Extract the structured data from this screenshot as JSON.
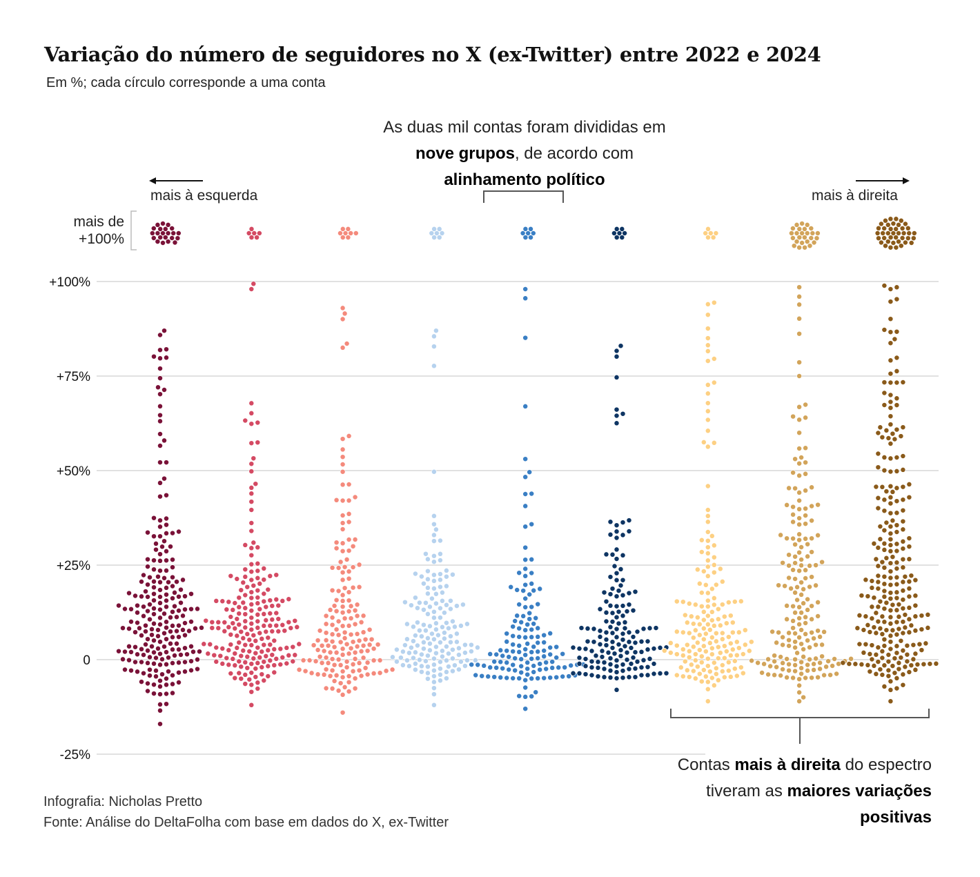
{
  "title": "Variação do número de seguidores no X (ex-Twitter) entre 2022 e 2024",
  "subtitle": "Em %; cada círculo corresponde a uma conta",
  "note_top": {
    "part1": "As duas mil contas foram divididas em ",
    "bold1": "nove grupos",
    "part2": ", de acordo com ",
    "bold2": "alinhamento político"
  },
  "direction": {
    "left": "mais à esquerda",
    "right": "mais à direita"
  },
  "overflow_label": {
    "line1": "mais de",
    "line2": "+100%"
  },
  "note_bottom": {
    "part1": "Contas ",
    "bold1": "mais à direita",
    "part2": " do espectro tiveram as ",
    "bold2": "maiores variações positivas"
  },
  "credits": {
    "infographic": "Infografia: Nicholas Pretto",
    "source": "Fonte: Análise do DeltaFolha com base em dados do X, ex-Twitter"
  },
  "chart_data": {
    "type": "beeswarm",
    "title": "Variação do número de seguidores no X (ex-Twitter) entre 2022 e 2024",
    "unit": "%",
    "ylim": [
      -25,
      100
    ],
    "yticks": [
      {
        "value": 100,
        "label": "+100%"
      },
      {
        "value": 75,
        "label": "+75%"
      },
      {
        "value": 50,
        "label": "+50%"
      },
      {
        "value": 25,
        "label": "+25%"
      },
      {
        "value": 0,
        "label": "0"
      },
      {
        "value": -25,
        "label": "-25%"
      }
    ],
    "grid": true,
    "groups": [
      {
        "index": 1,
        "position": "mais à esquerda",
        "color": "#7a1238",
        "accounts_over_100": 22,
        "min": -17,
        "max": 87,
        "bins": [
          [
            -15,
            3
          ],
          [
            -10,
            14
          ],
          [
            -5,
            26
          ],
          [
            0,
            34
          ],
          [
            5,
            32
          ],
          [
            10,
            28
          ],
          [
            15,
            22
          ],
          [
            20,
            16
          ],
          [
            25,
            10
          ],
          [
            30,
            8
          ],
          [
            35,
            5
          ],
          [
            40,
            2
          ],
          [
            45,
            2
          ],
          [
            50,
            2
          ],
          [
            55,
            3
          ],
          [
            60,
            2
          ],
          [
            65,
            1
          ],
          [
            70,
            4
          ],
          [
            75,
            3
          ],
          [
            80,
            3
          ],
          [
            85,
            1
          ]
        ]
      },
      {
        "index": 2,
        "position": "",
        "color": "#d44a63",
        "accounts_over_100": 6,
        "min": -12,
        "max": 98,
        "bins": [
          [
            -10,
            8
          ],
          [
            -5,
            28
          ],
          [
            0,
            40
          ],
          [
            5,
            36
          ],
          [
            10,
            28
          ],
          [
            15,
            20
          ],
          [
            20,
            14
          ],
          [
            25,
            5
          ],
          [
            30,
            3
          ],
          [
            35,
            2
          ],
          [
            40,
            2
          ],
          [
            45,
            3
          ],
          [
            50,
            2
          ],
          [
            55,
            2
          ],
          [
            60,
            3
          ],
          [
            65,
            2
          ],
          [
            95,
            1
          ]
        ]
      },
      {
        "index": 3,
        "position": "",
        "color": "#f48a7c",
        "accounts_over_100": 8,
        "min": -14,
        "max": 93,
        "bins": [
          [
            -10,
            10
          ],
          [
            -5,
            36
          ],
          [
            0,
            30
          ],
          [
            5,
            22
          ],
          [
            10,
            16
          ],
          [
            15,
            10
          ],
          [
            20,
            8
          ],
          [
            25,
            7
          ],
          [
            30,
            5
          ],
          [
            35,
            4
          ],
          [
            40,
            4
          ],
          [
            45,
            3
          ],
          [
            50,
            2
          ],
          [
            55,
            3
          ],
          [
            80,
            2
          ],
          [
            90,
            2
          ]
        ]
      },
      {
        "index": 4,
        "position": "",
        "color": "#b6d2ee",
        "accounts_over_100": 7,
        "min": -12,
        "max": 87,
        "bins": [
          [
            -10,
            5
          ],
          [
            -5,
            30
          ],
          [
            0,
            36
          ],
          [
            5,
            26
          ],
          [
            10,
            16
          ],
          [
            15,
            14
          ],
          [
            20,
            12
          ],
          [
            25,
            6
          ],
          [
            30,
            4
          ],
          [
            35,
            2
          ],
          [
            45,
            1
          ],
          [
            75,
            1
          ],
          [
            80,
            1
          ],
          [
            85,
            1
          ]
        ]
      },
      {
        "index": 5,
        "position": "",
        "color": "#3a7fc4",
        "accounts_over_100": 7,
        "min": -13,
        "max": 98,
        "bins": [
          [
            -10,
            6
          ],
          [
            -5,
            46
          ],
          [
            0,
            30
          ],
          [
            5,
            16
          ],
          [
            10,
            10
          ],
          [
            15,
            8
          ],
          [
            20,
            5
          ],
          [
            25,
            3
          ],
          [
            35,
            2
          ],
          [
            40,
            3
          ],
          [
            45,
            2
          ],
          [
            50,
            1
          ],
          [
            65,
            1
          ],
          [
            85,
            1
          ],
          [
            95,
            1
          ]
        ]
      },
      {
        "index": 6,
        "position": "",
        "color": "#0e3563",
        "accounts_over_100": 7,
        "min": -8,
        "max": 83,
        "bins": [
          [
            -5,
            40
          ],
          [
            0,
            36
          ],
          [
            5,
            22
          ],
          [
            10,
            14
          ],
          [
            15,
            10
          ],
          [
            20,
            6
          ],
          [
            25,
            5
          ],
          [
            30,
            5
          ],
          [
            35,
            4
          ],
          [
            60,
            2
          ],
          [
            65,
            2
          ],
          [
            70,
            1
          ],
          [
            80,
            2
          ]
        ]
      },
      {
        "index": 7,
        "position": "",
        "color": "#fdd083",
        "accounts_over_100": 6,
        "min": -11,
        "max": 94,
        "bins": [
          [
            -10,
            5
          ],
          [
            -5,
            32
          ],
          [
            0,
            38
          ],
          [
            5,
            26
          ],
          [
            10,
            18
          ],
          [
            15,
            12
          ],
          [
            20,
            8
          ],
          [
            25,
            6
          ],
          [
            30,
            5
          ],
          [
            35,
            3
          ],
          [
            45,
            1
          ],
          [
            55,
            3
          ],
          [
            60,
            2
          ],
          [
            65,
            2
          ],
          [
            70,
            3
          ],
          [
            75,
            2
          ],
          [
            80,
            2
          ],
          [
            85,
            2
          ],
          [
            90,
            2
          ]
        ]
      },
      {
        "index": 8,
        "position": "",
        "color": "#d2a45a",
        "accounts_over_100": 26,
        "min": -11,
        "max": 96,
        "bins": [
          [
            -10,
            4
          ],
          [
            -5,
            38
          ],
          [
            0,
            22
          ],
          [
            5,
            18
          ],
          [
            10,
            14
          ],
          [
            15,
            12
          ],
          [
            20,
            12
          ],
          [
            25,
            10
          ],
          [
            30,
            10
          ],
          [
            35,
            9
          ],
          [
            40,
            7
          ],
          [
            45,
            6
          ],
          [
            50,
            4
          ],
          [
            55,
            3
          ],
          [
            60,
            3
          ],
          [
            65,
            2
          ],
          [
            75,
            2
          ],
          [
            85,
            1
          ],
          [
            90,
            2
          ],
          [
            95,
            1
          ]
        ]
      },
      {
        "index": 9,
        "position": "mais à direita",
        "color": "#8a5a1a",
        "accounts_over_100": 40,
        "min": -11,
        "max": 98,
        "bins": [
          [
            -10,
            5
          ],
          [
            -5,
            30
          ],
          [
            0,
            28
          ],
          [
            5,
            24
          ],
          [
            10,
            24
          ],
          [
            15,
            20
          ],
          [
            20,
            18
          ],
          [
            25,
            14
          ],
          [
            30,
            12
          ],
          [
            35,
            10
          ],
          [
            40,
            10
          ],
          [
            45,
            8
          ],
          [
            50,
            8
          ],
          [
            55,
            7
          ],
          [
            60,
            6
          ],
          [
            65,
            6
          ],
          [
            70,
            5
          ],
          [
            75,
            4
          ],
          [
            80,
            2
          ],
          [
            85,
            3
          ],
          [
            90,
            2
          ],
          [
            95,
            3
          ]
        ]
      }
    ]
  }
}
